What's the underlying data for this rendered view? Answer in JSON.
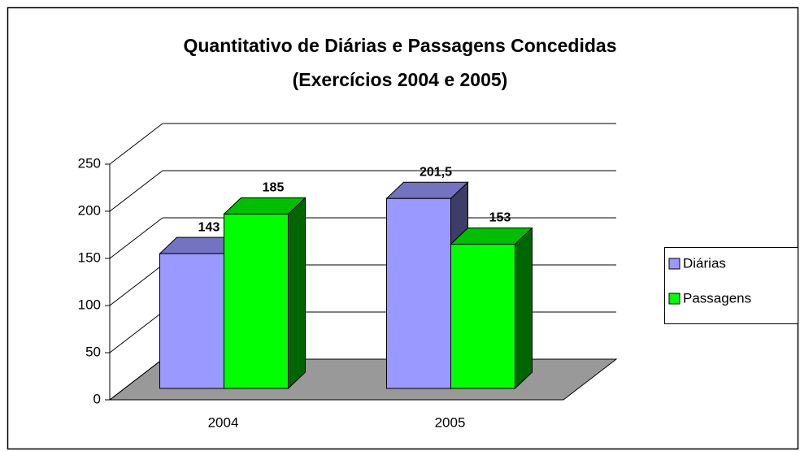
{
  "chart_data": {
    "type": "bar3d",
    "title": "Quantitativo de Diárias e Passagens Concedidas",
    "subtitle": "(Exercícios 2004 e 2005)",
    "categories": [
      "2004",
      "2005"
    ],
    "series": [
      {
        "name": "Diárias",
        "color": "#9999ff",
        "values": [
          143,
          201.5
        ],
        "value_labels": [
          "143",
          "201,5"
        ]
      },
      {
        "name": "Passagens",
        "color": "#00ff00",
        "values": [
          185,
          153
        ]
      }
    ],
    "ylim": [
      0,
      250
    ],
    "yticks": [
      0,
      50,
      100,
      150,
      200,
      250
    ],
    "grid": true,
    "legend": "right"
  }
}
